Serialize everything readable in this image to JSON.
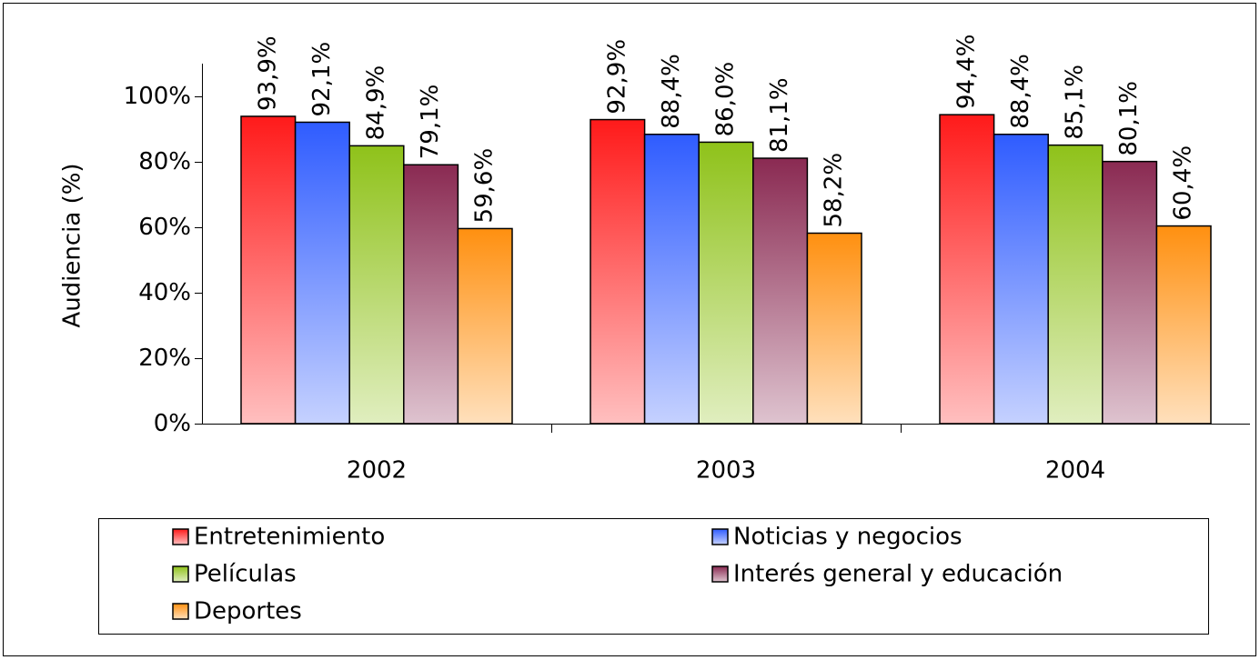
{
  "chart_data": {
    "type": "bar",
    "y_axis_label": "Audiencia (%)",
    "categories": [
      "2002",
      "2003",
      "2004"
    ],
    "series": [
      {
        "name": "Entretenimiento",
        "color": "#ff1a1a",
        "values": [
          93.9,
          92.9,
          94.4
        ],
        "value_labels": [
          "93,9%",
          "92,9%",
          "94,4%"
        ]
      },
      {
        "name": "Noticias y negocios",
        "color": "#2f5cff",
        "values": [
          92.1,
          88.4,
          88.4
        ],
        "value_labels": [
          "92,1%",
          "88,4%",
          "88,4%"
        ]
      },
      {
        "name": "Películas",
        "color": "#8fc21a",
        "values": [
          84.9,
          86.0,
          85.1
        ],
        "value_labels": [
          "84,9%",
          "86,0%",
          "85,1%"
        ]
      },
      {
        "name": "Interés general y educación",
        "color": "#8a2a52",
        "values": [
          79.1,
          81.1,
          80.1
        ],
        "value_labels": [
          "79,1%",
          "81,1%",
          "80,1%"
        ]
      },
      {
        "name": "Deportes",
        "color": "#ff9010",
        "values": [
          59.6,
          58.2,
          60.4
        ],
        "value_labels": [
          "59,6%",
          "58,2%",
          "60,4%"
        ]
      }
    ],
    "ylim": [
      0,
      110
    ],
    "yticks": [
      {
        "value": 0,
        "label": "0%"
      },
      {
        "value": 20,
        "label": "20%"
      },
      {
        "value": 40,
        "label": "40%"
      },
      {
        "value": 60,
        "label": "60%"
      },
      {
        "value": 80,
        "label": "80%"
      },
      {
        "value": 100,
        "label": "100%"
      }
    ],
    "legend": "bottom"
  }
}
